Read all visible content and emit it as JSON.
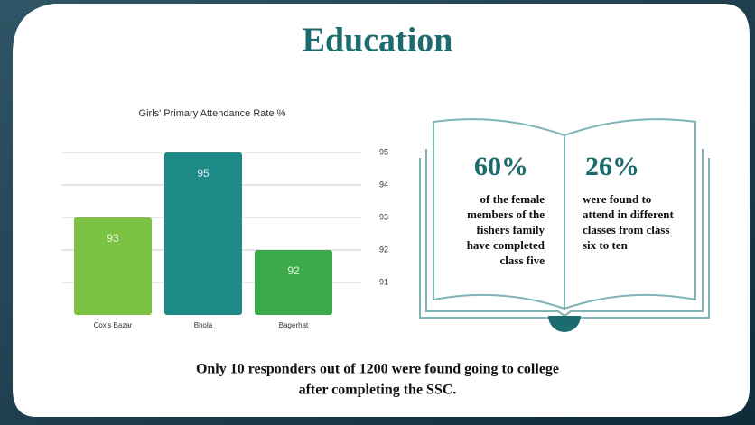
{
  "slide_title": "Education",
  "chart_data": {
    "type": "bar",
    "title": "Girls' Primary Attendance Rate %",
    "categories": [
      "Cox's Bazar",
      "Bhola",
      "Bagerhat"
    ],
    "values": [
      93,
      95,
      92
    ],
    "colors": [
      "#7cc242",
      "#1e8a88",
      "#3daa4a"
    ],
    "ylim": [
      90,
      96
    ],
    "yticks": [
      91,
      92,
      93,
      94,
      95
    ],
    "grid": true
  },
  "book": {
    "left": {
      "stat": "60%",
      "lines": [
        "of the female",
        "members of the",
        "fishers family",
        "have completed",
        "class five"
      ]
    },
    "right": {
      "stat": "26%",
      "lines": [
        "were found to",
        "attend in different",
        "classes from class",
        "six to ten"
      ]
    }
  },
  "footer": [
    "Only 10 responders out of 1200 were found going to college",
    "after completing the SSC."
  ]
}
